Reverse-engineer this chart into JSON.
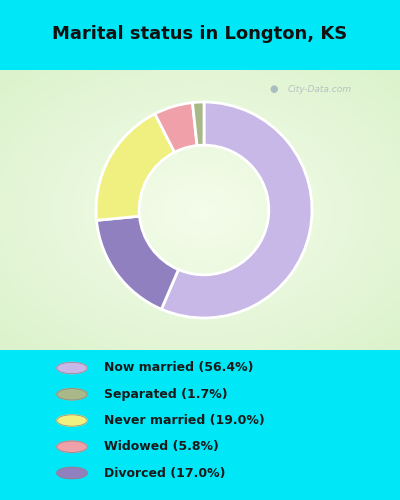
{
  "title": "Marital status in Longton, KS",
  "slices": [
    {
      "label": "Now married (56.4%)",
      "value": 56.4,
      "color": "#c8b8e8"
    },
    {
      "label": "Divorced (17.0%)",
      "value": 17.0,
      "color": "#9080c0"
    },
    {
      "label": "Never married (19.0%)",
      "value": 19.0,
      "color": "#f0f080"
    },
    {
      "label": "Widowed (5.8%)",
      "value": 5.8,
      "color": "#f0a0a8"
    },
    {
      "label": "Separated (1.7%)",
      "value": 1.7,
      "color": "#a8b888"
    }
  ],
  "legend_colors": [
    "#c8b8e8",
    "#a8b888",
    "#f0f080",
    "#f0a0a8",
    "#9080c0"
  ],
  "legend_labels": [
    "Now married (56.4%)",
    "Separated (1.7%)",
    "Never married (19.0%)",
    "Widowed (5.8%)",
    "Divorced (17.0%)"
  ],
  "title_fontsize": 13,
  "bg_cyan": "#00e8f8",
  "bg_chart_color1": "#d8f0d0",
  "bg_chart_color2": "#f0faf0",
  "watermark": "City-Data.com",
  "start_angle": 90,
  "donut_width": 0.4
}
